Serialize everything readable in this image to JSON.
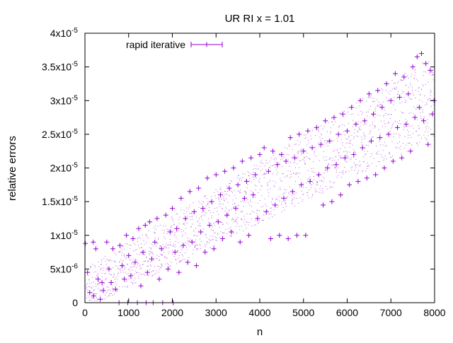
{
  "chart_data": {
    "type": "scatter",
    "title": "UR RI x = 1.01",
    "xlabel": "n",
    "ylabel": "relative errors",
    "xlim": [
      0,
      8000
    ],
    "ylim": [
      0,
      4e-05
    ],
    "grid": false,
    "legend_position": "top-left",
    "x_ticks": [
      {
        "value": 0,
        "label": "0"
      },
      {
        "value": 1000,
        "label": "1000"
      },
      {
        "value": 2000,
        "label": "2000"
      },
      {
        "value": 3000,
        "label": "3000"
      },
      {
        "value": 4000,
        "label": "4000"
      },
      {
        "value": 5000,
        "label": "5000"
      },
      {
        "value": 6000,
        "label": "6000"
      },
      {
        "value": 7000,
        "label": "7000"
      },
      {
        "value": 8000,
        "label": "8000"
      }
    ],
    "y_ticks": [
      {
        "value": 0,
        "mantissa": "0",
        "exponent": ""
      },
      {
        "value": 5e-06,
        "mantissa": "5x10",
        "exponent": "-6"
      },
      {
        "value": 1e-05,
        "mantissa": "1x10",
        "exponent": "-5"
      },
      {
        "value": 1.5e-05,
        "mantissa": "1.5x10",
        "exponent": "-5"
      },
      {
        "value": 2e-05,
        "mantissa": "2x10",
        "exponent": "-5"
      },
      {
        "value": 2.5e-05,
        "mantissa": "2.5x10",
        "exponent": "-5"
      },
      {
        "value": 3e-05,
        "mantissa": "3x10",
        "exponent": "-5"
      },
      {
        "value": 3.5e-05,
        "mantissa": "3.5x10",
        "exponent": "-5"
      },
      {
        "value": 4e-05,
        "mantissa": "4x10",
        "exponent": "-5"
      }
    ],
    "series": [
      {
        "name": "rapid iterative",
        "color": "#9400d3",
        "marker": "plus",
        "error_bars": "x",
        "points": [
          [
            10,
            8.8e-06
          ],
          [
            60,
            4.5e-06
          ],
          [
            110,
            1.5e-06
          ],
          [
            190,
            9e-06
          ],
          [
            200,
            1e-06
          ],
          [
            250,
            8e-06
          ],
          [
            300,
            3.5e-06
          ],
          [
            350,
            5e-07
          ],
          [
            390,
            3e-06
          ],
          [
            420,
            1.8e-06
          ],
          [
            500,
            9e-06
          ],
          [
            550,
            5e-06
          ],
          [
            600,
            3e-06
          ],
          [
            640,
            8e-06
          ],
          [
            700,
            2e-06
          ],
          [
            780,
            0.0
          ],
          [
            800,
            8.5e-06
          ],
          [
            850,
            5.5e-06
          ],
          [
            900,
            3.5e-06
          ],
          [
            950,
            1e-05
          ],
          [
            980,
            0.0
          ],
          [
            1000,
            7e-06
          ],
          [
            1050,
            4e-06
          ],
          [
            1100,
            9.5e-06
          ],
          [
            1150,
            6e-06
          ],
          [
            1200,
            0.0
          ],
          [
            1230,
            1.1e-05
          ],
          [
            1280,
            2.5e-06
          ],
          [
            1330,
            7.5e-06
          ],
          [
            1380,
            1.15e-05
          ],
          [
            1400,
            0.0
          ],
          [
            1430,
            4.5e-06
          ],
          [
            1480,
            1.2e-05
          ],
          [
            1530,
            6.5e-06
          ],
          [
            1560,
            0.0
          ],
          [
            1600,
            9e-06
          ],
          [
            1650,
            1.25e-05
          ],
          [
            1700,
            3.5e-06
          ],
          [
            1750,
            8e-06
          ],
          [
            1780,
            0.0
          ],
          [
            1850,
            1.3e-05
          ],
          [
            1900,
            5e-06
          ],
          [
            1950,
            1.05e-05
          ],
          [
            2000,
            1.4e-05
          ],
          [
            2020,
            0.0
          ],
          [
            2060,
            7.5e-06
          ],
          [
            2100,
            1.1e-05
          ],
          [
            2150,
            4.5e-06
          ],
          [
            2200,
            1.55e-05
          ],
          [
            2250,
            8.5e-06
          ],
          [
            2300,
            1.25e-05
          ],
          [
            2350,
            6e-06
          ],
          [
            2400,
            1.65e-05
          ],
          [
            2450,
            9e-06
          ],
          [
            2500,
            1.35e-05
          ],
          [
            2550,
            5.5e-06
          ],
          [
            2600,
            1.7e-05
          ],
          [
            2650,
            1.05e-05
          ],
          [
            2700,
            1.4e-05
          ],
          [
            2750,
            7.5e-06
          ],
          [
            2800,
            1.85e-05
          ],
          [
            2850,
            1.15e-05
          ],
          [
            2900,
            1.5e-05
          ],
          [
            2950,
            8e-06
          ],
          [
            3000,
            1.9e-05
          ],
          [
            3050,
            1.2e-05
          ],
          [
            3100,
            1.6e-05
          ],
          [
            3150,
            9.5e-06
          ],
          [
            3200,
            1.95e-05
          ],
          [
            3250,
            1.3e-05
          ],
          [
            3300,
            1.7e-05
          ],
          [
            3350,
            1.05e-05
          ],
          [
            3400,
            2e-05
          ],
          [
            3450,
            1.4e-05
          ],
          [
            3500,
            1.75e-05
          ],
          [
            3550,
            9e-06
          ],
          [
            3600,
            2.1e-05
          ],
          [
            3650,
            1.55e-05
          ],
          [
            3700,
            1.8e-05
          ],
          [
            3750,
            1e-05
          ],
          [
            3800,
            2.15e-05
          ],
          [
            3850,
            1.6e-05
          ],
          [
            3900,
            1.9e-05
          ],
          [
            3950,
            1.25e-05
          ],
          [
            4000,
            2.2e-05
          ],
          [
            4100,
            2.3e-05
          ],
          [
            4150,
            1.35e-05
          ],
          [
            4200,
            1.95e-05
          ],
          [
            4250,
            9.5e-06
          ],
          [
            4300,
            2.25e-05
          ],
          [
            4350,
            1.45e-05
          ],
          [
            4400,
            2.05e-05
          ],
          [
            4450,
            1e-05
          ],
          [
            4500,
            2.2e-05
          ],
          [
            4550,
            1.55e-05
          ],
          [
            4600,
            2.1e-05
          ],
          [
            4650,
            9.5e-06
          ],
          [
            4700,
            2.45e-05
          ],
          [
            4750,
            1.65e-05
          ],
          [
            4800,
            2.15e-05
          ],
          [
            4850,
            1e-05
          ],
          [
            4900,
            2.5e-05
          ],
          [
            4950,
            1.75e-05
          ],
          [
            5000,
            2.25e-05
          ],
          [
            5050,
            1e-05
          ],
          [
            5100,
            2.55e-05
          ],
          [
            5150,
            1.8e-05
          ],
          [
            5200,
            2.3e-05
          ],
          [
            5300,
            2.6e-05
          ],
          [
            5350,
            1.9e-05
          ],
          [
            5400,
            2.35e-05
          ],
          [
            5450,
            1.45e-05
          ],
          [
            5500,
            2.7e-05
          ],
          [
            5550,
            2e-05
          ],
          [
            5600,
            2.4e-05
          ],
          [
            5650,
            1.5e-05
          ],
          [
            5700,
            2.75e-05
          ],
          [
            5750,
            2.05e-05
          ],
          [
            5800,
            2.5e-05
          ],
          [
            5850,
            1.6e-05
          ],
          [
            5900,
            2.8e-05
          ],
          [
            5950,
            2.15e-05
          ],
          [
            6000,
            2.55e-05
          ],
          [
            6050,
            1.75e-05
          ],
          [
            6100,
            2.9e-05
          ],
          [
            6150,
            2.2e-05
          ],
          [
            6200,
            2.65e-05
          ],
          [
            6250,
            1.8e-05
          ],
          [
            6300,
            3e-05
          ],
          [
            6350,
            2.3e-05
          ],
          [
            6400,
            2.7e-05
          ],
          [
            6450,
            1.85e-05
          ],
          [
            6500,
            3.1e-05
          ],
          [
            6550,
            2.4e-05
          ],
          [
            6600,
            2.8e-05
          ],
          [
            6650,
            1.9e-05
          ],
          [
            6700,
            3.15e-05
          ],
          [
            6750,
            2.45e-05
          ],
          [
            6800,
            2.9e-05
          ],
          [
            6850,
            2e-05
          ],
          [
            6900,
            3.25e-05
          ],
          [
            6950,
            2.5e-05
          ],
          [
            7000,
            3e-05
          ],
          [
            7050,
            2.1e-05
          ],
          [
            7100,
            3.4e-05
          ],
          [
            7150,
            2.6e-05
          ],
          [
            7200,
            3.05e-05
          ],
          [
            7250,
            2.15e-05
          ],
          [
            7300,
            3.35e-05
          ],
          [
            7350,
            2.65e-05
          ],
          [
            7400,
            3.1e-05
          ],
          [
            7450,
            2.25e-05
          ],
          [
            7500,
            3.5e-05
          ],
          [
            7550,
            2.75e-05
          ],
          [
            7600,
            3.65e-05
          ],
          [
            7650,
            2.9e-05
          ],
          [
            7700,
            3.7e-05
          ],
          [
            7750,
            2.7e-05
          ],
          [
            7800,
            3.55e-05
          ],
          [
            7850,
            2.35e-05
          ],
          [
            7900,
            3.45e-05
          ],
          [
            7950,
            2.8e-05
          ],
          [
            7990,
            3e-05
          ]
        ]
      }
    ]
  }
}
